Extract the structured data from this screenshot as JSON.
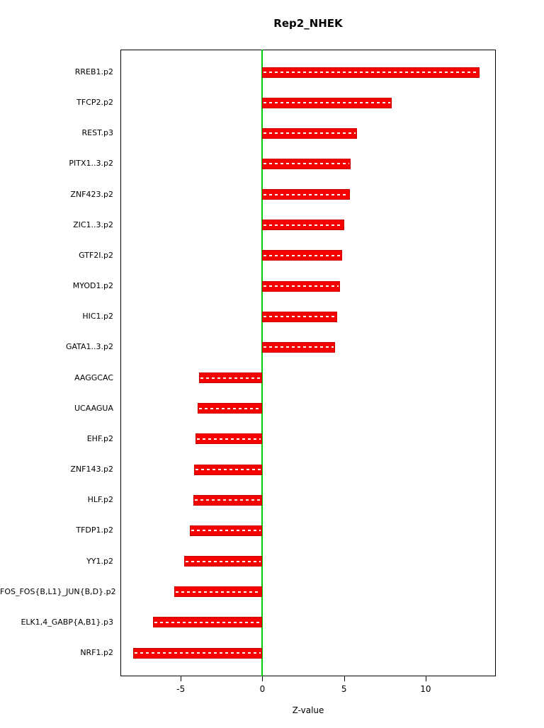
{
  "chart_data": {
    "type": "bar",
    "orientation": "horizontal",
    "title": "Rep2_NHEK",
    "xlabel": "Z-value",
    "categories": [
      "RREB1.p2",
      "TFCP2.p2",
      "REST.p3",
      "PITX1..3.p2",
      "ZNF423.p2",
      "ZIC1..3.p2",
      "GTF2I.p2",
      "MYOD1.p2",
      "HIC1.p2",
      "GATA1..3.p2",
      "AAGGCAC",
      "UCAAGUA",
      "EHF.p2",
      "ZNF143.p2",
      "HLF.p2",
      "TFDP1.p2",
      "YY1.p2",
      "FOS_FOS{B,L1}_JUN{B,D}.p2",
      "ELK1,4_GABP{A,B1}.p3",
      "NRF1.p2"
    ],
    "values": [
      13.3,
      7.9,
      5.8,
      5.4,
      5.35,
      5.0,
      4.9,
      4.75,
      4.6,
      4.45,
      -3.9,
      -3.95,
      -4.1,
      -4.2,
      -4.25,
      -4.45,
      -4.8,
      -5.4,
      -6.7,
      -7.9
    ],
    "xlim": [
      -8.7,
      14.3
    ],
    "xticks": [
      -5,
      0,
      5,
      10
    ],
    "grid": "off",
    "legend": "none",
    "colors": {
      "bar": "#f80000",
      "bar_border": "#c80000",
      "bar_center_dash": "#ffffff",
      "zero_line": "#00cd00",
      "box_border": "#000000",
      "background": "#ffffff"
    }
  }
}
